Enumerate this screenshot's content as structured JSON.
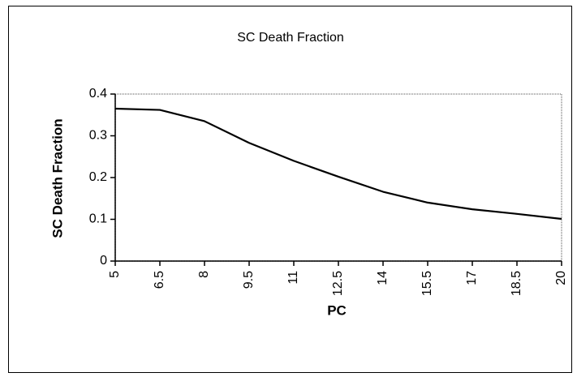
{
  "chart_data": {
    "type": "line",
    "title": "SC Death Fraction",
    "x_label": "PC",
    "y_label": "SC Death Fraction",
    "x": [
      5,
      6.5,
      8,
      9.5,
      11,
      12.5,
      14,
      15.5,
      17,
      18.5,
      20
    ],
    "series": [
      {
        "name": "SC Death Fraction",
        "color": "#000000",
        "values": [
          0.365,
          0.362,
          0.335,
          0.283,
          0.24,
          0.202,
          0.166,
          0.14,
          0.124,
          0.113,
          0.101
        ]
      }
    ],
    "xlim": [
      5,
      20
    ],
    "xticks": [
      5,
      6.5,
      8,
      9.5,
      11,
      12.5,
      14,
      15.5,
      17,
      18.5,
      20
    ],
    "ylim": [
      0,
      0.4
    ],
    "yticks": [
      0,
      0.1,
      0.2,
      0.3,
      0.4
    ],
    "grid": false
  }
}
